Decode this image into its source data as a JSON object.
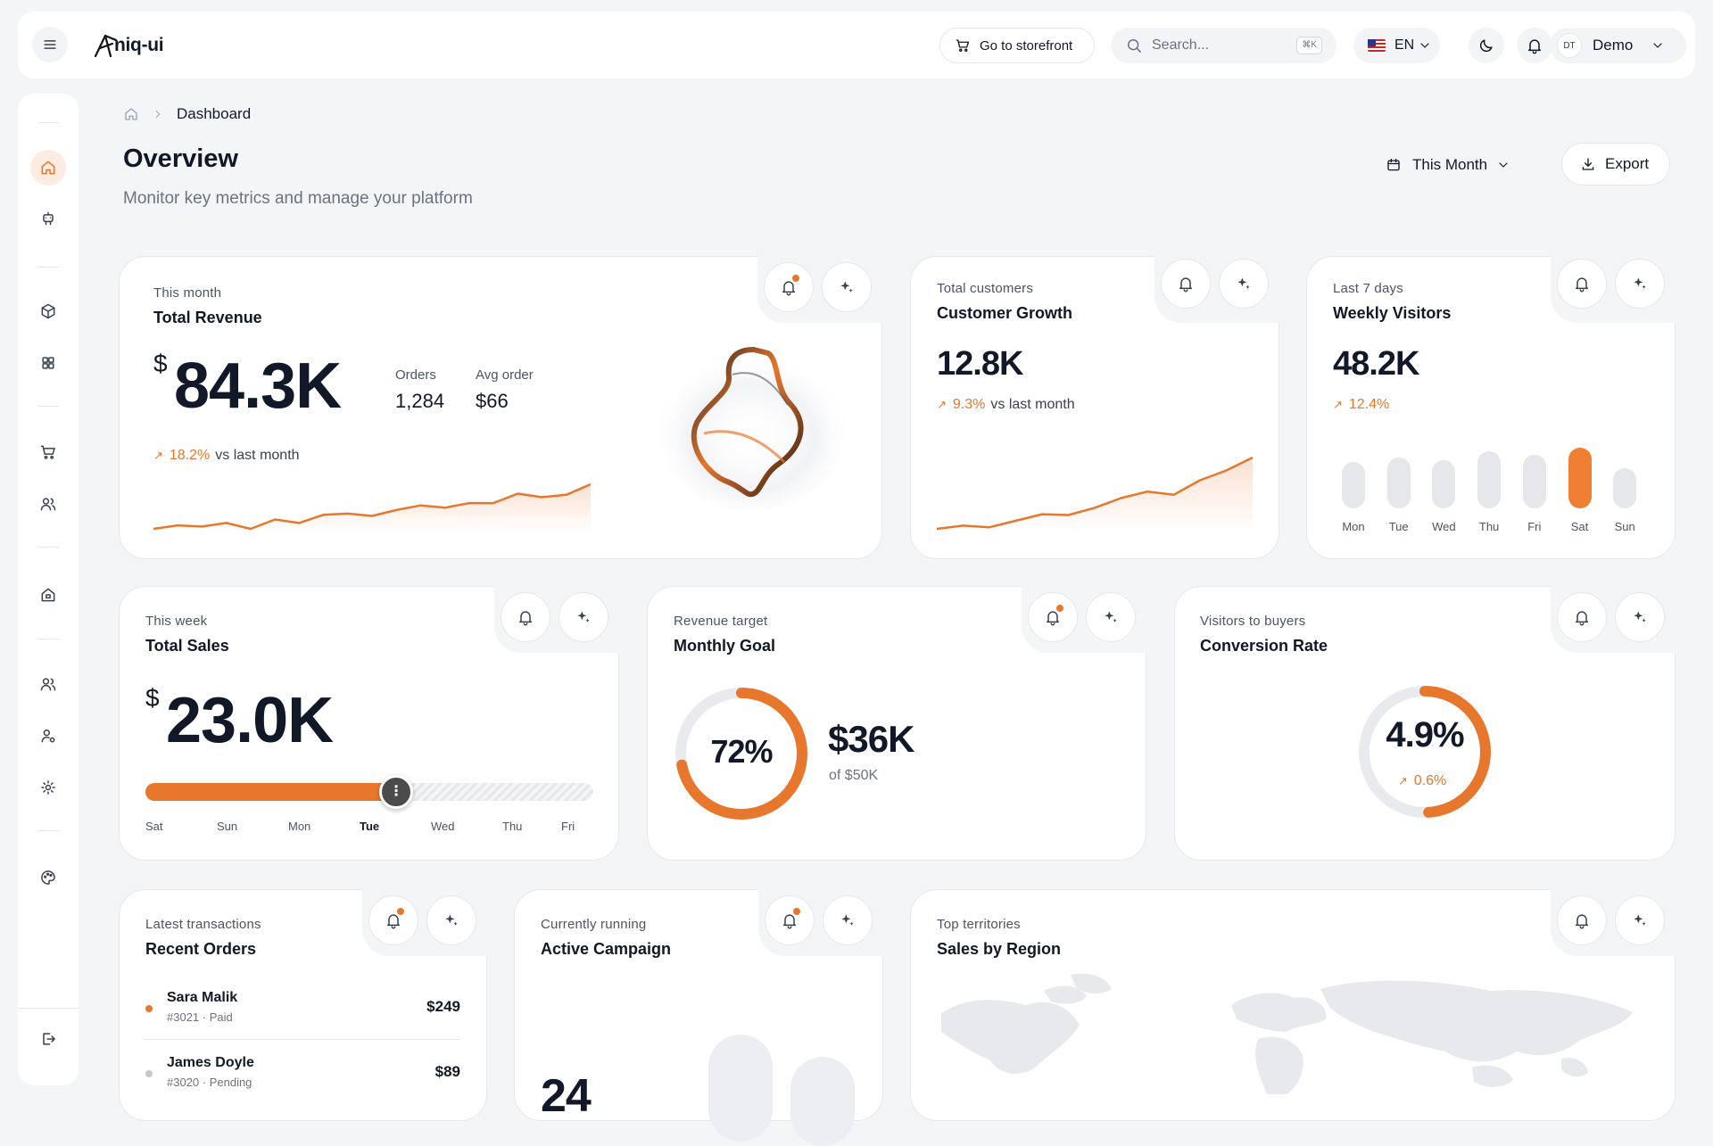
{
  "brand": {
    "logo_text": "niq-ui"
  },
  "topbar": {
    "storefront_label": "Go to storefront",
    "search_placeholder": "Search...",
    "search_shortcut": "⌘K",
    "language": "EN",
    "user_initials": "DT",
    "user_name": "Demo"
  },
  "breadcrumb": {
    "current": "Dashboard"
  },
  "header": {
    "title": "Overview",
    "subtitle": "Monitor key metrics and manage your platform",
    "period_label": "This Month",
    "export_label": "Export"
  },
  "colors": {
    "accent": "#e8772e",
    "bg": "#f4f5f7",
    "muted_bar": "#e5e7eb"
  },
  "cards": {
    "revenue": {
      "kicker": "This month",
      "title": "Total Revenue",
      "currency": "$",
      "value": "84.3K",
      "orders_label": "Orders",
      "orders_value": "1,284",
      "avg_label": "Avg order",
      "avg_value": "$66",
      "trend_pct": "18.2%",
      "trend_text": "vs last month",
      "spark": [
        6,
        9,
        8,
        11,
        6,
        14,
        11,
        18,
        19,
        17,
        22,
        26,
        24,
        28,
        28,
        36,
        33,
        35,
        44
      ]
    },
    "customers": {
      "kicker": "Total customers",
      "title": "Customer Growth",
      "value": "12.8K",
      "trend_pct": "9.3%",
      "trend_text": "vs last month",
      "spark": [
        2,
        6,
        4,
        12,
        20,
        19,
        28,
        40,
        48,
        44,
        62,
        74,
        90
      ]
    },
    "visitors": {
      "kicker": "Last 7 days",
      "title": "Weekly Visitors",
      "value": "48.2K",
      "trend_pct": "12.4%",
      "days": [
        "Mon",
        "Tue",
        "Wed",
        "Thu",
        "Fri",
        "Sat",
        "Sun"
      ],
      "values": [
        45,
        53,
        48,
        62,
        56,
        68,
        35
      ],
      "highlight": "Sat"
    },
    "sales": {
      "kicker": "This week",
      "title": "Total Sales",
      "currency": "$",
      "value": "23.0K",
      "days": [
        "Sat",
        "Sun",
        "Mon",
        "Tue",
        "Wed",
        "Thu",
        "Fri"
      ],
      "current_day": "Tue",
      "progress": 0.56
    },
    "goal": {
      "kicker": "Revenue target",
      "title": "Monthly Goal",
      "percent_label": "72%",
      "progress": 0.72,
      "amount": "$36K",
      "of_label": "of $50K"
    },
    "conversion": {
      "kicker": "Visitors to buyers",
      "title": "Conversion Rate",
      "value": "4.9%",
      "trend_pct": "0.6%",
      "progress": 0.49
    },
    "orders": {
      "kicker": "Latest transactions",
      "title": "Recent Orders",
      "items": [
        {
          "name": "Sara Malik",
          "meta": "#3021 · Paid",
          "amount": "$249",
          "status_color": "#e8772e"
        },
        {
          "name": "James Doyle",
          "meta": "#3020 · Pending",
          "amount": "$89",
          "status_color": "#c4c7cc"
        }
      ]
    },
    "campaign": {
      "kicker": "Currently running",
      "title": "Active Campaign",
      "value": "24"
    },
    "region": {
      "kicker": "Top territories",
      "title": "Sales by Region"
    }
  }
}
